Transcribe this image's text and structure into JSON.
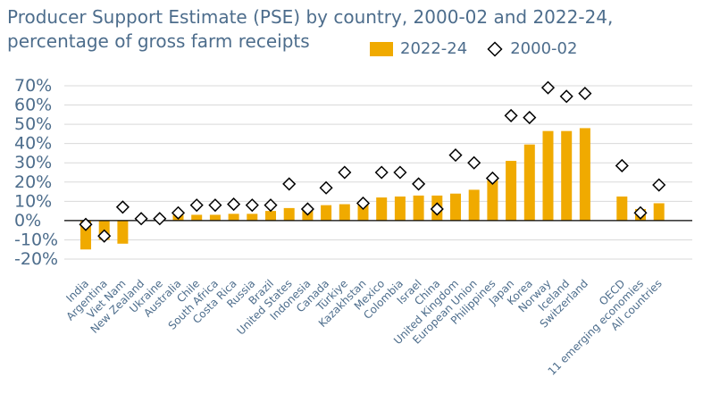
{
  "title": {
    "line1": "Producer Support Estimate (PSE) by country, 2000-02 and 2022-24,",
    "line2": "percentage of gross farm receipts"
  },
  "colors": {
    "bar": "#f0aa00",
    "text": "#4d6d8c",
    "grid": "#d9d9d9",
    "axis": "#000000"
  },
  "chart_data": {
    "type": "bar",
    "ylim": [
      -20,
      70
    ],
    "yticks": [
      -20,
      -10,
      0,
      10,
      20,
      30,
      40,
      50,
      60,
      70
    ],
    "ytick_labels": [
      "-20%",
      "-10%",
      "0%",
      "10%",
      "20%",
      "30%",
      "40%",
      "50%",
      "60%",
      "70%"
    ],
    "grid": true,
    "legend_position": "top-right",
    "categories": [
      "India",
      "Argentina",
      "Viet Nam",
      "New Zealand",
      "Ukraine",
      "Australia",
      "Chile",
      "South Africa",
      "Costa Rica",
      "Russia",
      "Brazil",
      "United States",
      "Indonesia",
      "Canada",
      "Türkiye",
      "Kazakhstan",
      "Mexico",
      "Colombia",
      "Israel",
      "China",
      "United Kingdom",
      "European Union",
      "Philippines",
      "Japan",
      "Korea",
      "Norway",
      "Iceland",
      "Switzerland",
      "",
      "OECD",
      "11 emerging economies",
      "All countries"
    ],
    "series": [
      {
        "name": "2022-24",
        "kind": "bar",
        "values": [
          -15,
          -10,
          -12,
          0,
          0,
          3,
          3,
          3,
          3.5,
          3.5,
          5,
          6.5,
          6,
          8,
          8.5,
          9,
          12,
          12.5,
          13,
          13,
          14,
          16,
          21,
          31,
          39.5,
          46.5,
          46.5,
          48,
          null,
          12.5,
          6,
          9
        ]
      },
      {
        "name": "2000-02",
        "kind": "marker",
        "values": [
          -2,
          -8,
          7,
          1,
          1,
          4,
          8,
          8,
          8.5,
          8,
          8,
          19,
          6,
          17,
          25,
          9,
          25,
          25,
          19,
          6,
          34,
          30,
          22,
          54.5,
          53.5,
          69,
          64.5,
          66,
          null,
          28.5,
          4,
          18.5
        ]
      }
    ]
  }
}
